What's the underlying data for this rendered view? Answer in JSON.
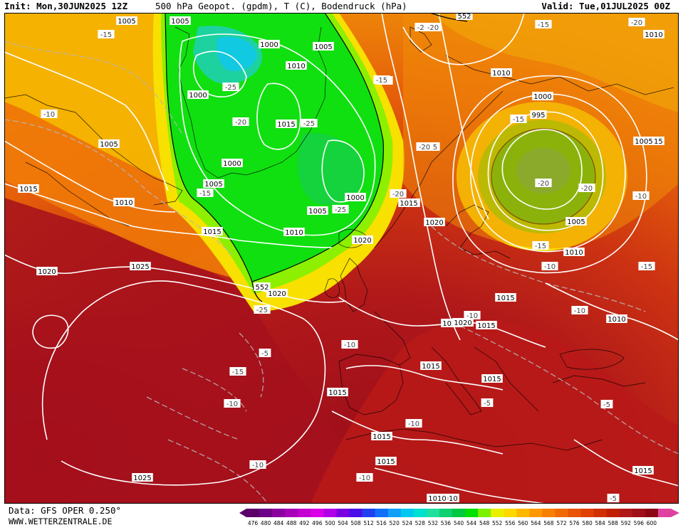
{
  "header": {
    "init": "Init: Mon,30JUN2025 12Z",
    "title": "500 hPa Geopot. (gpdm), T (C), Bodendruck (hPa)",
    "valid": "Valid: Tue,01JUL2025 00Z"
  },
  "footer": {
    "data_source": "Data: GFS OPER 0.250°",
    "website": "WWW.WETTERZENTRALE.DE"
  },
  "colorbar": {
    "ticks": [
      "476",
      "480",
      "484",
      "488",
      "492",
      "496",
      "500",
      "504",
      "508",
      "512",
      "516",
      "520",
      "524",
      "528",
      "532",
      "536",
      "540",
      "544",
      "548",
      "552",
      "556",
      "560",
      "564",
      "568",
      "572",
      "576",
      "580",
      "584",
      "588",
      "592",
      "596",
      "600"
    ],
    "colors": [
      "#5a0068",
      "#6e0088",
      "#8a009e",
      "#a800b8",
      "#c400d0",
      "#dc00e8",
      "#b000e8",
      "#7a00e0",
      "#4a10e8",
      "#2040f0",
      "#1070f8",
      "#10a0f8",
      "#00c8f0",
      "#00e0d0",
      "#20e0a0",
      "#10d070",
      "#00c840",
      "#00e000",
      "#7cf000",
      "#e8f000",
      "#ffd800",
      "#ffb800",
      "#ff9800",
      "#f88000",
      "#f06a00",
      "#e85400",
      "#e04000",
      "#d03000",
      "#c02000",
      "#b01818",
      "#a01018",
      "#8c0814",
      "#e040a0"
    ]
  },
  "map": {
    "isobar_labels": [
      "1005",
      "1005",
      "1000",
      "1005",
      "1010",
      "1000",
      "1015",
      "1005",
      "1000",
      "1005",
      "1010",
      "1015",
      "1010",
      "1015",
      "1020",
      "1025",
      "1020",
      "1015",
      "1000",
      "1005",
      "1010",
      "1015",
      "1020",
      "1015",
      "1015",
      "1015",
      "1020",
      "1025",
      "1000",
      "995",
      "1005",
      "1010",
      "1015",
      "1010",
      "1020",
      "1015",
      "1015",
      "1015",
      "1015",
      "1015",
      "1010",
      "1010",
      "1010",
      "1020",
      "1005",
      "552",
      "552"
    ],
    "temp_labels": [
      "-15",
      "-10",
      "-25",
      "-20",
      "-25",
      "-15",
      "-25",
      "-20",
      "-15",
      "-20",
      "-15",
      "-20",
      "-15",
      "-20",
      "-20",
      "-15",
      "-10",
      "-10",
      "-10",
      "-10",
      "-15",
      "-10",
      "-10",
      "-5",
      "-5",
      "-10",
      "-10",
      "-5",
      "-10",
      "-5",
      "-10",
      "-15",
      "-20",
      "-25",
      "-15",
      "-20"
    ]
  }
}
